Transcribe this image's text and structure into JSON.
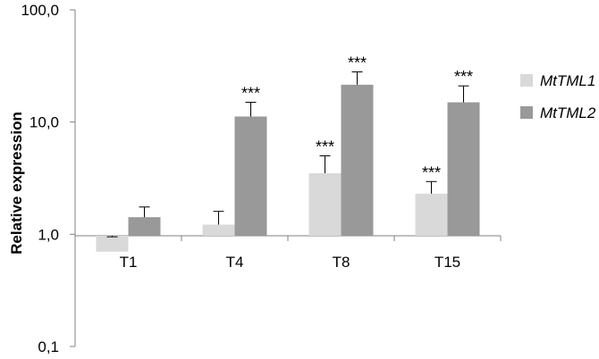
{
  "chart_data": {
    "type": "bar",
    "yscale": "log",
    "ylim": [
      0.1,
      100
    ],
    "yticks": [
      "0,1",
      "1,0",
      "10,0",
      "100,0"
    ],
    "ytick_values": [
      0.1,
      1,
      10,
      100
    ],
    "ylabel": "Relative expression",
    "categories": [
      "T1",
      "T4",
      "T8",
      "T15"
    ],
    "series": [
      {
        "name": "MtTML1",
        "color": "#d9d9d9",
        "values": [
          0.7,
          1.22,
          3.5,
          2.3
        ],
        "errors": [
          0.95,
          1.6,
          5.0,
          2.95
        ],
        "significance": [
          "",
          "",
          "***",
          "***"
        ]
      },
      {
        "name": "MtTML2",
        "color": "#999999",
        "values": [
          1.42,
          11.2,
          21.5,
          15.0
        ],
        "errors": [
          1.75,
          15.0,
          28.0,
          21.0
        ],
        "significance": [
          "",
          "***",
          "***",
          "***"
        ]
      }
    ],
    "legend_position": "right",
    "grid": false
  }
}
